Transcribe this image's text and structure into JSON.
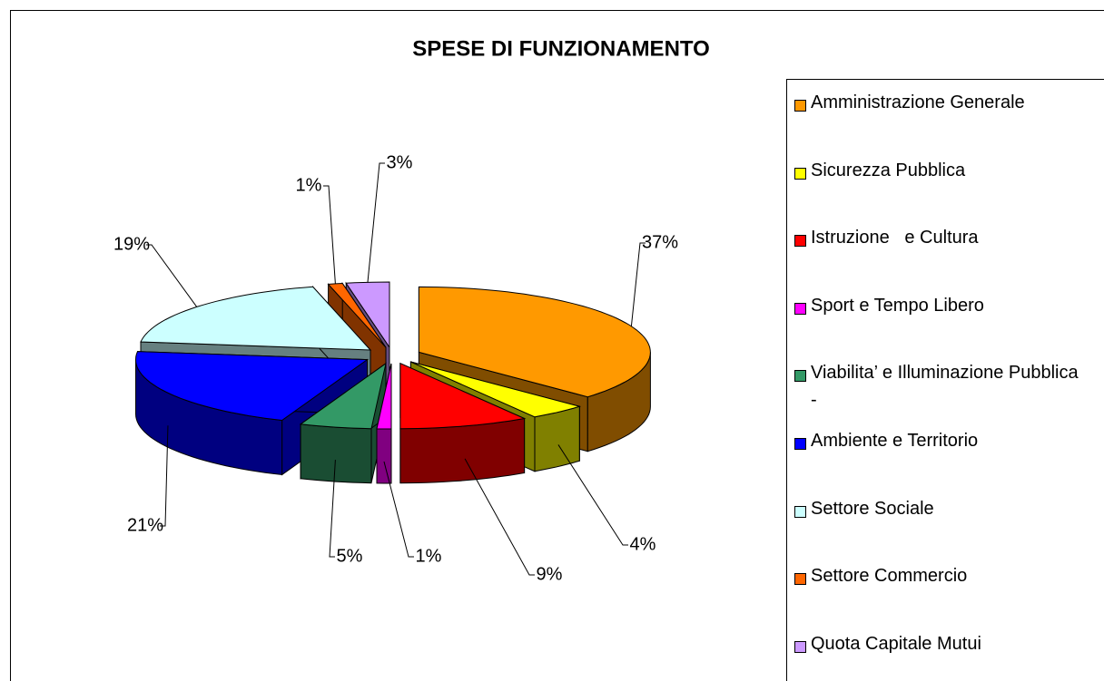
{
  "chart_data": {
    "type": "pie",
    "title": "SPESE DI FUNZIONAMENTO",
    "categories": [
      "Amministrazione Generale",
      "Sicurezza Pubblica",
      "Istruzione   e Cultura",
      "Sport e Tempo Libero",
      "Viabilita’ e Illuminazione Pubblica -",
      "Ambiente e Territorio",
      "Settore Sociale",
      "Settore Commercio",
      "Quota Capitale Mutui"
    ],
    "values": [
      37,
      4,
      9,
      1,
      5,
      21,
      19,
      1,
      3
    ],
    "value_labels": [
      "37%",
      "4%",
      "9%",
      "1%",
      "5%",
      "21%",
      "19%",
      "1%",
      "3%"
    ],
    "colors": [
      "#ff9900",
      "#ffff00",
      "#ff0000",
      "#ff00ff",
      "#339966",
      "#0000ff",
      "#ccffff",
      "#ff6600",
      "#cc99ff"
    ],
    "legend": "right"
  }
}
